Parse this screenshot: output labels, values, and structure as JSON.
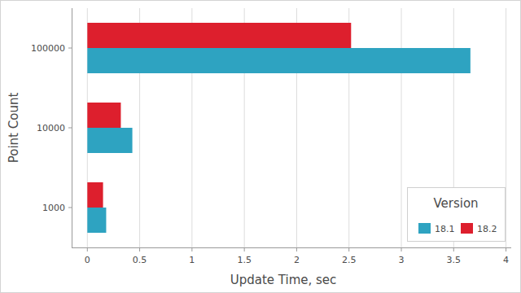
{
  "chart_data": {
    "type": "bar",
    "orientation": "horizontal",
    "x_label": "Update Time, sec",
    "y_label": "Point Count",
    "categories": [
      "1000",
      "10000",
      "100000"
    ],
    "series": [
      {
        "name": "18.1",
        "color": "#2ea3c1",
        "values": [
          0.18,
          0.43,
          3.66
        ]
      },
      {
        "name": "18.2",
        "color": "#dd1f2d",
        "values": [
          0.15,
          0.32,
          2.52
        ]
      }
    ],
    "legend_title": "Version",
    "xlim": [
      -0.15,
      4.05
    ],
    "xticks": [
      0,
      0.5,
      1,
      1.5,
      2,
      2.5,
      3,
      3.5,
      4
    ],
    "grid": true,
    "legend": "lower right"
  }
}
